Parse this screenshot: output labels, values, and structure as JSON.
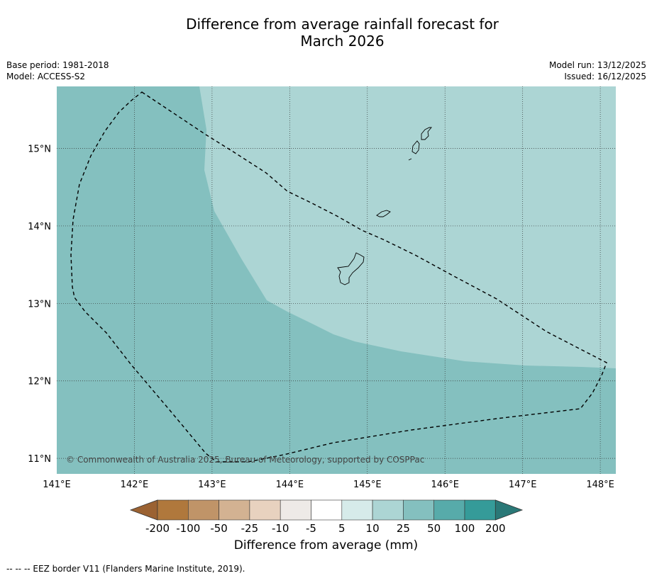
{
  "title": {
    "line1": "Difference from average rainfall forecast for",
    "line2": "March 2026"
  },
  "meta_left": {
    "base_period": "Base period: 1981-2018",
    "model": "Model: ACCESS-S2"
  },
  "meta_right": {
    "model_run": "Model run: 13/12/2025",
    "issued": "Issued: 16/12/2025"
  },
  "map": {
    "lon_range": [
      141.0,
      148.2
    ],
    "lat_range": [
      10.8,
      15.8
    ],
    "lon_ticks": [
      {
        "value": 141,
        "label": "141°E"
      },
      {
        "value": 142,
        "label": "142°E"
      },
      {
        "value": 143,
        "label": "143°E"
      },
      {
        "value": 144,
        "label": "144°E"
      },
      {
        "value": 145,
        "label": "145°E"
      },
      {
        "value": 146,
        "label": "146°E"
      },
      {
        "value": 147,
        "label": "147°E"
      },
      {
        "value": 148,
        "label": "148°E"
      }
    ],
    "lat_ticks": [
      {
        "value": 11,
        "label": "11°N"
      },
      {
        "value": 12,
        "label": "12°N"
      },
      {
        "value": 13,
        "label": "13°N"
      },
      {
        "value": 14,
        "label": "14°N"
      },
      {
        "value": 15,
        "label": "15°N"
      }
    ],
    "grid": "dotted",
    "copyright": "© Commonwealth of Australia 2025, Bureau of Meteorology, supported by COSPPac",
    "regions": [
      {
        "name": "25-50 mm",
        "color": "#84c0bf"
      },
      {
        "name": "10-25 mm",
        "color": "#acd5d4"
      }
    ]
  },
  "colorbar": {
    "labels": [
      "-200",
      "-100",
      "-50",
      "-25",
      "-10",
      "-5",
      "5",
      "10",
      "25",
      "50",
      "100",
      "200"
    ],
    "colors": [
      "#9b6232",
      "#b0783c",
      "#c09468",
      "#d3b292",
      "#e8d2bf",
      "#eeeae7",
      "#ffffff",
      "#d6ebea",
      "#acd5d4",
      "#84c0bf",
      "#57abaa",
      "#359b99",
      "#2a7877"
    ],
    "title": "Difference from average (mm)"
  },
  "footnote": "--  --  -- EEZ border V11 (Flanders Marine Institute, 2019)."
}
